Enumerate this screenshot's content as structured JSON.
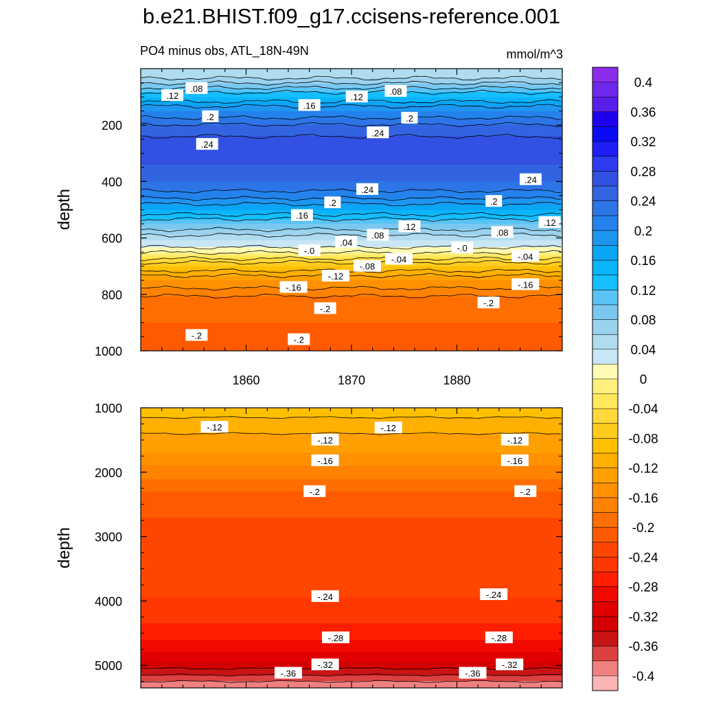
{
  "chart_data": {
    "type": "contour",
    "title": "b.e21.BHIST.f09_g17.ccisens-reference.001",
    "variable_label": "PO4 minus obs, ATL_18N-49N",
    "units": "mmol/m^3",
    "x": {
      "range": [
        1850,
        1890
      ],
      "ticks": [
        1860,
        1870,
        1880
      ],
      "tick_labels": [
        "1860",
        "1870",
        "1880"
      ]
    },
    "colorbar": {
      "levels": [
        -0.42,
        -0.4,
        -0.38,
        -0.36,
        -0.34,
        -0.32,
        -0.3,
        -0.28,
        -0.26,
        -0.24,
        -0.22,
        -0.2,
        -0.18,
        -0.16,
        -0.14,
        -0.12,
        -0.1,
        -0.08,
        -0.06,
        -0.04,
        -0.02,
        0,
        0.02,
        0.04,
        0.06,
        0.08,
        0.1,
        0.12,
        0.14,
        0.16,
        0.18,
        0.2,
        0.22,
        0.24,
        0.26,
        0.28,
        0.3,
        0.32,
        0.34,
        0.36,
        0.38,
        0.4,
        0.42
      ],
      "labels": [
        "0.4",
        "0.36",
        "0.32",
        "0.28",
        "0.24",
        "0.2",
        "0.16",
        "0.12",
        "0.08",
        "0.04",
        "0",
        "-0.04",
        "-0.08",
        "-0.12",
        "-0.16",
        "-0.2",
        "-0.24",
        "-0.28",
        "-0.32",
        "-0.36",
        "-0.4"
      ],
      "colors": [
        "#fab4b4",
        "#f08080",
        "#dc4040",
        "#c81414",
        "#d20000",
        "#e10000",
        "#f00a00",
        "#ff1e00",
        "#ff3700",
        "#ff4600",
        "#ff5a00",
        "#ff6e00",
        "#ff8200",
        "#ff9100",
        "#ffa000",
        "#ffb000",
        "#ffc000",
        "#ffcc1e",
        "#ffd83c",
        "#ffe85a",
        "#fff07d",
        "#fffab4",
        "#c8e6f5",
        "#b0dcf0",
        "#9bd2ee",
        "#7ac8f0",
        "#5ac3f5",
        "#14beff",
        "#0ab4fa",
        "#0aa5f5",
        "#1e96f0",
        "#2382eb",
        "#2d75e6",
        "#3264e1",
        "#3250e1",
        "#2d3cf0",
        "#1e1ef5",
        "#0a0af5",
        "#1e00ee",
        "#5a1eeb",
        "#6e28eb",
        "#8c2ceb"
      ]
    },
    "panels": [
      {
        "name": "upper",
        "ylabel": "depth",
        "ylim": [
          1000,
          0
        ],
        "yticks": [
          200,
          400,
          600,
          800,
          1000
        ],
        "ytick_labels": [
          "200",
          "400",
          "600",
          "800",
          "1000"
        ],
        "profile": [
          [
            0,
            0.05
          ],
          [
            25,
            0.05
          ],
          [
            60,
            0.09
          ],
          [
            100,
            0.14
          ],
          [
            150,
            0.2
          ],
          [
            210,
            0.25
          ],
          [
            270,
            0.27
          ],
          [
            340,
            0.26
          ],
          [
            400,
            0.24
          ],
          [
            450,
            0.21
          ],
          [
            500,
            0.16
          ],
          [
            550,
            0.1
          ],
          [
            610,
            0.04
          ],
          [
            650,
            0.005
          ],
          [
            660,
            -0.02
          ],
          [
            700,
            -0.08
          ],
          [
            750,
            -0.14
          ],
          [
            820,
            -0.19
          ],
          [
            900,
            -0.2
          ],
          [
            1000,
            -0.22
          ]
        ],
        "contour_labels": [
          {
            "text": ".12",
            "x": 1853.0,
            "depth": 95
          },
          {
            "text": ".08",
            "x": 1855.3,
            "depth": 70
          },
          {
            "text": ".2",
            "x": 1856.6,
            "depth": 170
          },
          {
            "text": ".24",
            "x": 1856.3,
            "depth": 268
          },
          {
            "text": ".16",
            "x": 1866.0,
            "depth": 130
          },
          {
            "text": ".12",
            "x": 1870.5,
            "depth": 100
          },
          {
            "text": ".08",
            "x": 1874.2,
            "depth": 80
          },
          {
            "text": ".2",
            "x": 1875.5,
            "depth": 175
          },
          {
            "text": ".24",
            "x": 1872.5,
            "depth": 227
          },
          {
            "text": ".24",
            "x": 1871.5,
            "depth": 428
          },
          {
            "text": ".2",
            "x": 1868.2,
            "depth": 475
          },
          {
            "text": ".16",
            "x": 1865.3,
            "depth": 520
          },
          {
            "text": ".04",
            "x": 1869.5,
            "depth": 615
          },
          {
            "text": ".08",
            "x": 1872.5,
            "depth": 590
          },
          {
            "text": ".12",
            "x": 1875.5,
            "depth": 560
          },
          {
            "text": ".24",
            "x": 1887.0,
            "depth": 393
          },
          {
            "text": ".2",
            "x": 1883.5,
            "depth": 470
          },
          {
            "text": ".12",
            "x": 1888.8,
            "depth": 545
          },
          {
            "text": ".08",
            "x": 1884.3,
            "depth": 580
          },
          {
            "text": "-.0",
            "x": 1866.0,
            "depth": 645
          },
          {
            "text": "-.0",
            "x": 1880.5,
            "depth": 635
          },
          {
            "text": "-.08",
            "x": 1871.5,
            "depth": 700
          },
          {
            "text": "-.04",
            "x": 1874.5,
            "depth": 675
          },
          {
            "text": "-.04",
            "x": 1886.5,
            "depth": 665
          },
          {
            "text": "-.12",
            "x": 1868.5,
            "depth": 735
          },
          {
            "text": "-.16",
            "x": 1864.5,
            "depth": 775
          },
          {
            "text": "-.16",
            "x": 1886.5,
            "depth": 765
          },
          {
            "text": "-.2",
            "x": 1867.5,
            "depth": 850
          },
          {
            "text": "-.2",
            "x": 1883.0,
            "depth": 830
          },
          {
            "text": "-.2",
            "x": 1855.3,
            "depth": 945
          },
          {
            "text": "-.2",
            "x": 1865.0,
            "depth": 960
          }
        ]
      },
      {
        "name": "lower",
        "ylabel": "depth",
        "ylim": [
          5350,
          1000
        ],
        "yticks": [
          1000,
          2000,
          3000,
          4000,
          5000
        ],
        "ytick_labels": [
          "1000",
          "2000",
          "3000",
          "4000",
          "5000"
        ],
        "profile": [
          [
            1000,
            -0.085
          ],
          [
            1300,
            -0.115
          ],
          [
            1500,
            -0.125
          ],
          [
            1700,
            -0.14
          ],
          [
            1900,
            -0.16
          ],
          [
            2100,
            -0.18
          ],
          [
            2300,
            -0.2
          ],
          [
            2700,
            -0.22
          ],
          [
            3300,
            -0.225
          ],
          [
            3950,
            -0.24
          ],
          [
            4350,
            -0.26
          ],
          [
            4600,
            -0.28
          ],
          [
            4800,
            -0.3
          ],
          [
            4950,
            -0.32
          ],
          [
            5100,
            -0.35
          ],
          [
            5200,
            -0.37
          ],
          [
            5350,
            -0.4
          ]
        ],
        "contour_labels": [
          {
            "text": "-.12",
            "x": 1857.0,
            "depth": 1300
          },
          {
            "text": "-.12",
            "x": 1867.5,
            "depth": 1500
          },
          {
            "text": "-.12",
            "x": 1873.5,
            "depth": 1310
          },
          {
            "text": "-.12",
            "x": 1885.5,
            "depth": 1500
          },
          {
            "text": "-.16",
            "x": 1867.5,
            "depth": 1820
          },
          {
            "text": "-.16",
            "x": 1885.5,
            "depth": 1820
          },
          {
            "text": "-.2",
            "x": 1866.5,
            "depth": 2300
          },
          {
            "text": "-.2",
            "x": 1886.5,
            "depth": 2300
          },
          {
            "text": "-.24",
            "x": 1867.5,
            "depth": 3930
          },
          {
            "text": "-.24",
            "x": 1883.5,
            "depth": 3900
          },
          {
            "text": "-.28",
            "x": 1868.5,
            "depth": 4570
          },
          {
            "text": "-.28",
            "x": 1884.0,
            "depth": 4570
          },
          {
            "text": "-.32",
            "x": 1867.5,
            "depth": 4990
          },
          {
            "text": "-.32",
            "x": 1885.0,
            "depth": 4990
          },
          {
            "text": "-.36",
            "x": 1864.0,
            "depth": 5120
          },
          {
            "text": "-.36",
            "x": 1881.5,
            "depth": 5120
          }
        ]
      }
    ]
  }
}
